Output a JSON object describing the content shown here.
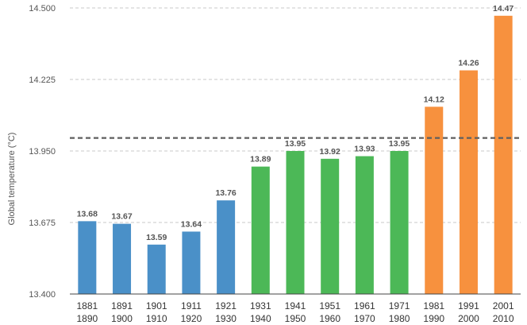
{
  "chart_data": {
    "type": "bar",
    "categories": [
      [
        "1881",
        "1890"
      ],
      [
        "1891",
        "1900"
      ],
      [
        "1901",
        "1910"
      ],
      [
        "1911",
        "1920"
      ],
      [
        "1921",
        "1930"
      ],
      [
        "1931",
        "1940"
      ],
      [
        "1941",
        "1950"
      ],
      [
        "1951",
        "1960"
      ],
      [
        "1961",
        "1970"
      ],
      [
        "1971",
        "1980"
      ],
      [
        "1981",
        "1990"
      ],
      [
        "1991",
        "2000"
      ],
      [
        "2001",
        "2010"
      ]
    ],
    "values": [
      13.68,
      13.67,
      13.59,
      13.64,
      13.76,
      13.89,
      13.95,
      13.92,
      13.93,
      13.95,
      14.12,
      14.26,
      14.47
    ],
    "value_labels": [
      "13.68",
      "13.67",
      "13.59",
      "13.64",
      "13.76",
      "13.89",
      "13.95",
      "13.92",
      "13.93",
      "13.95",
      "14.12",
      "14.26",
      "14.47"
    ],
    "colors": [
      "#4a90c8",
      "#4a90c8",
      "#4a90c8",
      "#4a90c8",
      "#4a90c8",
      "#4cb857",
      "#4cb857",
      "#4cb857",
      "#4cb857",
      "#4cb857",
      "#f7913e",
      "#f7913e",
      "#f7913e"
    ],
    "title": "",
    "xlabel": "",
    "ylabel": "Global temperature (°C)",
    "ylim": [
      13.4,
      14.5
    ],
    "yticks": [
      13.4,
      13.675,
      13.95,
      14.225,
      14.5
    ],
    "ytick_labels": [
      "13.400",
      "13.675",
      "13.950",
      "14.225",
      "14.500"
    ],
    "reference_line": 14.0,
    "grid": true
  }
}
